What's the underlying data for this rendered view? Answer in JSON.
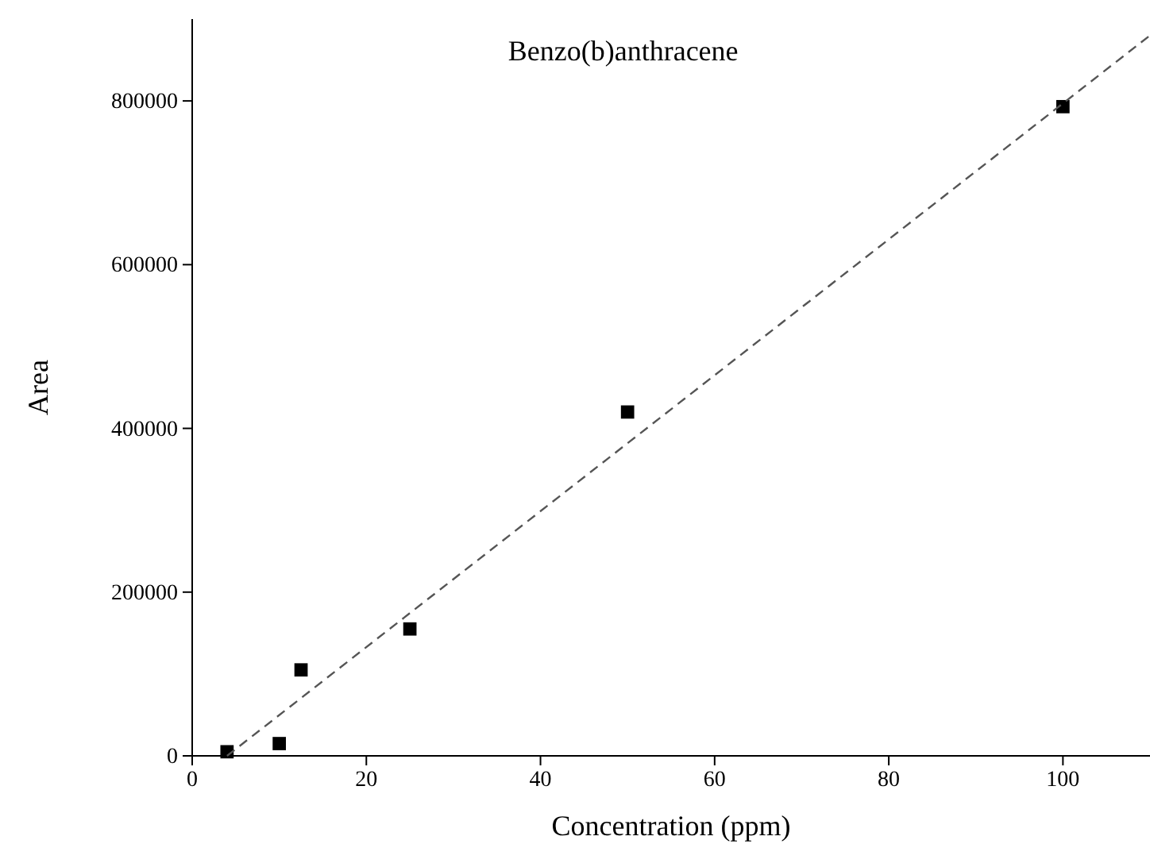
{
  "chart_data": {
    "type": "scatter",
    "title": "Benzo(b)anthracene",
    "xlabel": "Concentration (ppm)",
    "ylabel": "Area",
    "xlim": [
      0,
      110
    ],
    "ylim": [
      0,
      900000
    ],
    "xticks": [
      0,
      20,
      40,
      60,
      80,
      100
    ],
    "yticks": [
      0,
      200000,
      400000,
      600000,
      800000
    ],
    "grid": false,
    "marker": "square",
    "series": [
      {
        "color": "#000000",
        "x": [
          4,
          10,
          12.5,
          25,
          50,
          100
        ],
        "values": [
          5000,
          15000,
          105000,
          155000,
          420000,
          793000
        ]
      },
      {
        "type": "line",
        "color": "#555555",
        "line_style": "dashed",
        "marker": "none",
        "x": [
          4,
          110
        ],
        "values": [
          0,
          880000
        ]
      }
    ]
  }
}
